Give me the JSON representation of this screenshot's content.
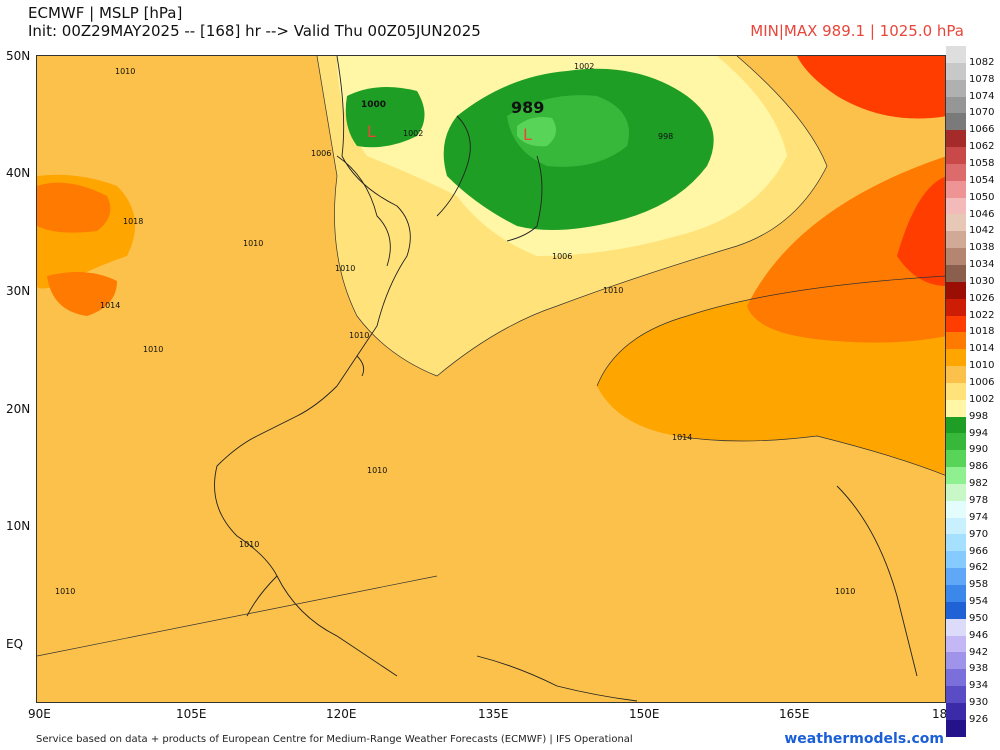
{
  "header": {
    "title": "ECMWF | MSLP [hPa]",
    "init": "Init: 00Z29MAY2025 -- [168] hr --> Valid Thu 00Z05JUN2025",
    "minmax": "MIN|MAX 989.1 | 1025.0 hPa"
  },
  "axes": {
    "lat_labels": [
      "50N",
      "40N",
      "30N",
      "20N",
      "10N",
      "EQ"
    ],
    "lon_labels": [
      "90E",
      "105E",
      "120E",
      "135E",
      "150E",
      "165E",
      "18"
    ]
  },
  "map_labels": {
    "isobars": [
      "1010",
      "1010",
      "1006",
      "1018",
      "1014",
      "1010",
      "1010",
      "1010",
      "1010",
      "1010",
      "1010",
      "1010",
      "1002",
      "1002",
      "998",
      "1006",
      "1010",
      "1014",
      "1010"
    ],
    "low_center_value": "989",
    "low_left_value": "1000",
    "low_symbol": "L"
  },
  "legend": {
    "labels": [
      "1082",
      "1078",
      "1074",
      "1070",
      "1066",
      "1062",
      "1058",
      "1054",
      "1050",
      "1046",
      "1042",
      "1038",
      "1034",
      "1030",
      "1026",
      "1022",
      "1018",
      "1014",
      "1010",
      "1006",
      "1002",
      "998",
      "994",
      "990",
      "986",
      "982",
      "978",
      "974",
      "970",
      "966",
      "962",
      "958",
      "954",
      "950",
      "946",
      "942",
      "938",
      "934",
      "930",
      "926"
    ],
    "colors": [
      "#dedede",
      "#c8c8c8",
      "#b0b0b0",
      "#969696",
      "#7a7a7a",
      "#a52a2a",
      "#c94848",
      "#de6b6b",
      "#ee9494",
      "#f3baba",
      "#e7c7b6",
      "#d1a997",
      "#b48672",
      "#8b5f4e",
      "#9b0e04",
      "#ce1d05",
      "#ff3d00",
      "#ff7a00",
      "#ffa500",
      "#fbc14a",
      "#ffe37a",
      "#fff6a6",
      "#1f9e25",
      "#37b83a",
      "#58d558",
      "#8ff08f",
      "#c8f8c8",
      "#e3fdfd",
      "#c8f0ff",
      "#a6e0ff",
      "#86cbff",
      "#5ea8f7",
      "#3c87ea",
      "#1f62d6",
      "#dcdcfa",
      "#c3b8f5",
      "#9f93ea",
      "#7b6fdc",
      "#5a4cc5",
      "#3c2ba8",
      "#24128a"
    ]
  },
  "colors": {
    "c1002": "#fff6a6",
    "c1006": "#ffe37a",
    "c1010": "#fbc14a",
    "c1014": "#ffa500",
    "c1018": "#ff7a00",
    "c1022": "#ff3d00",
    "c998": "#1f9e25",
    "c994": "#37b83a",
    "c990": "#58d558"
  },
  "footer": {
    "credit": "Service based on data + products of European Centre for Medium-Range Weather Forecasts (ECMWF) | IFS Operational",
    "brand": "weathermodels.com"
  }
}
